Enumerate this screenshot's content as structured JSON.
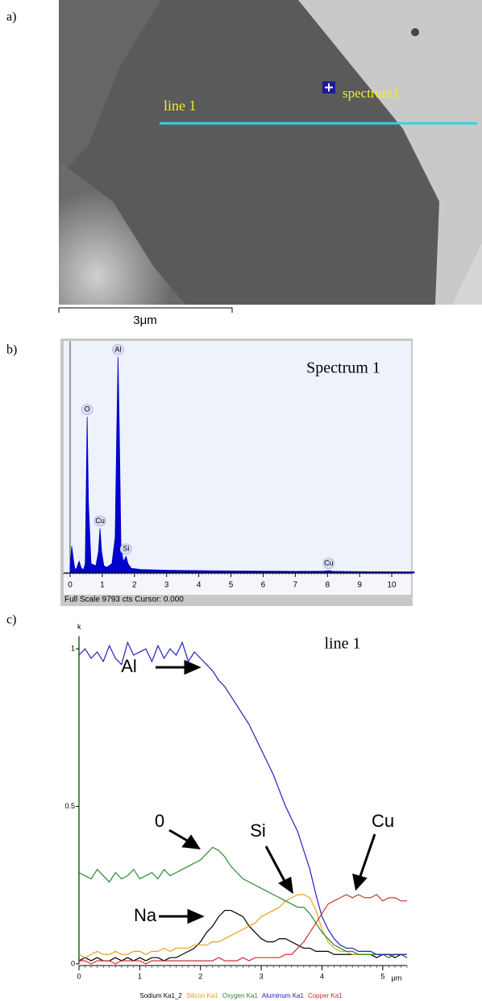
{
  "panel_labels": [
    "a)",
    "b)",
    "c)"
  ],
  "image": {
    "line_label": "line 1",
    "point_label": "spectrum1",
    "scale_bar": "3μm"
  },
  "chart_data": [
    {
      "type": "area",
      "title": "Spectrum 1",
      "caption": "Full Scale 9793 cts Cursor: 0.000",
      "x": [
        0,
        0.05,
        0.1,
        0.15,
        0.2,
        0.28,
        0.35,
        0.42,
        0.47,
        0.5,
        0.53,
        0.57,
        0.65,
        0.8,
        0.88,
        0.93,
        0.98,
        1.05,
        1.15,
        1.3,
        1.4,
        1.45,
        1.49,
        1.53,
        1.58,
        1.65,
        1.7,
        1.74,
        1.8,
        1.9,
        2.2,
        3,
        4,
        5,
        6,
        7,
        7.9,
        8.04,
        8.2,
        9,
        10,
        10.7
      ],
      "values": [
        200,
        1150,
        600,
        150,
        200,
        500,
        200,
        150,
        400,
        3500,
        6640,
        3000,
        400,
        300,
        900,
        1900,
        900,
        300,
        250,
        400,
        1500,
        6000,
        9180,
        6000,
        1200,
        500,
        600,
        710,
        400,
        200,
        150,
        120,
        100,
        90,
        80,
        70,
        80,
        100,
        70,
        60,
        50,
        50
      ],
      "color": "#0000cc",
      "xlim": [
        -0.2,
        10.6
      ],
      "xticks": [
        0,
        1,
        2,
        3,
        4,
        5,
        6,
        7,
        8,
        9,
        10
      ],
      "ylim": [
        0,
        9793
      ],
      "annotations": [
        {
          "text": "O",
          "x": 0.53
        },
        {
          "text": "Cu",
          "x": 0.93
        },
        {
          "text": "Al",
          "x": 1.49
        },
        {
          "text": "Si",
          "x": 1.74
        },
        {
          "text": "Cu",
          "x": 8.04
        }
      ]
    },
    {
      "type": "line",
      "title": "line 1",
      "ylabel": "k",
      "xlabel": "μm",
      "x": [
        0,
        0.1,
        0.2,
        0.3,
        0.4,
        0.5,
        0.6,
        0.7,
        0.8,
        0.9,
        1,
        1.1,
        1.2,
        1.3,
        1.4,
        1.5,
        1.6,
        1.7,
        1.8,
        1.9,
        2,
        2.1,
        2.2,
        2.3,
        2.4,
        2.5,
        2.6,
        2.7,
        2.8,
        2.9,
        3,
        3.1,
        3.2,
        3.3,
        3.4,
        3.5,
        3.6,
        3.7,
        3.8,
        3.9,
        4,
        4.1,
        4.2,
        4.3,
        4.4,
        4.5,
        4.6,
        4.7,
        4.8,
        4.9,
        5,
        5.1,
        5.2,
        5.3,
        5.4
      ],
      "series": [
        {
          "name": "Sodium Ka1_2",
          "color": "#000000",
          "values": [
            0.01,
            0.02,
            0.01,
            0.02,
            0.01,
            0.01,
            0.02,
            0.01,
            0.02,
            0.01,
            0.02,
            0.01,
            0.02,
            0.02,
            0.01,
            0.02,
            0.02,
            0.03,
            0.04,
            0.05,
            0.07,
            0.1,
            0.12,
            0.15,
            0.17,
            0.17,
            0.16,
            0.15,
            0.12,
            0.1,
            0.08,
            0.07,
            0.07,
            0.08,
            0.08,
            0.07,
            0.06,
            0.05,
            0.05,
            0.04,
            0.04,
            0.04,
            0.03,
            0.03,
            0.03,
            0.03,
            0.03,
            0.03,
            0.03,
            0.02,
            0.03,
            0.03,
            0.02,
            0.03,
            0.02
          ]
        },
        {
          "name": "Silicon Ka1",
          "color": "#e8a020",
          "values": [
            0.03,
            0.02,
            0.03,
            0.04,
            0.03,
            0.03,
            0.04,
            0.03,
            0.03,
            0.04,
            0.04,
            0.03,
            0.04,
            0.04,
            0.05,
            0.04,
            0.05,
            0.05,
            0.05,
            0.06,
            0.06,
            0.06,
            0.07,
            0.07,
            0.08,
            0.09,
            0.1,
            0.11,
            0.12,
            0.13,
            0.15,
            0.16,
            0.17,
            0.18,
            0.2,
            0.21,
            0.22,
            0.22,
            0.21,
            0.17,
            0.11,
            0.07,
            0.05,
            0.04,
            0.04,
            0.03,
            0.03,
            0.03,
            0.03,
            0.03,
            0.03,
            0.02,
            0.03,
            0.03,
            0.03
          ]
        },
        {
          "name": "Oxygen Ka1",
          "color": "#2a8a2a",
          "values": [
            0.29,
            0.28,
            0.27,
            0.3,
            0.28,
            0.26,
            0.29,
            0.27,
            0.28,
            0.3,
            0.27,
            0.28,
            0.29,
            0.27,
            0.3,
            0.28,
            0.29,
            0.3,
            0.31,
            0.32,
            0.33,
            0.35,
            0.37,
            0.36,
            0.34,
            0.31,
            0.29,
            0.27,
            0.26,
            0.25,
            0.24,
            0.23,
            0.22,
            0.21,
            0.2,
            0.19,
            0.18,
            0.18,
            0.16,
            0.13,
            0.1,
            0.08,
            0.06,
            0.05,
            0.04,
            0.04,
            0.03,
            0.03,
            0.03,
            0.03,
            0.03,
            0.02,
            0.03,
            0.03,
            0.02
          ]
        },
        {
          "name": "Aluminum Ka1",
          "color": "#2020c0",
          "values": [
            0.98,
            1.0,
            0.97,
            0.99,
            0.96,
            1.01,
            0.97,
            0.95,
            1.02,
            0.98,
            0.99,
            1.0,
            0.96,
            1.01,
            0.97,
            1.0,
            0.98,
            1.02,
            0.96,
            0.99,
            0.97,
            0.95,
            0.93,
            0.9,
            0.88,
            0.85,
            0.82,
            0.79,
            0.76,
            0.72,
            0.68,
            0.64,
            0.6,
            0.55,
            0.5,
            0.46,
            0.42,
            0.36,
            0.3,
            0.22,
            0.15,
            0.11,
            0.08,
            0.06,
            0.05,
            0.05,
            0.04,
            0.04,
            0.04,
            0.03,
            0.03,
            0.03,
            0.03,
            0.03,
            0.03
          ]
        },
        {
          "name": "Copper Ka1",
          "color": "#d03030",
          "values": [
            0.01,
            0.01,
            0,
            0.01,
            0.01,
            0.01,
            0,
            0.01,
            0.01,
            0.01,
            0.01,
            0,
            0.01,
            0.01,
            0.01,
            0.01,
            0.01,
            0.01,
            0.01,
            0.01,
            0.01,
            0.01,
            0.01,
            0.02,
            0.01,
            0.01,
            0.01,
            0.02,
            0.01,
            0.02,
            0.02,
            0.02,
            0.02,
            0.02,
            0.03,
            0.03,
            0.05,
            0.07,
            0.1,
            0.13,
            0.16,
            0.19,
            0.2,
            0.21,
            0.22,
            0.21,
            0.22,
            0.21,
            0.21,
            0.22,
            0.2,
            0.21,
            0.21,
            0.2,
            0.2
          ]
        }
      ],
      "xlim": [
        0,
        5.4
      ],
      "xticks": [
        0,
        1,
        2,
        3,
        4,
        5
      ],
      "ylim": [
        0,
        1.04
      ],
      "yticks": [
        0,
        0.5,
        1
      ],
      "annotations": [
        "Al",
        "0",
        "Si",
        "Cu",
        "Na"
      ]
    }
  ]
}
